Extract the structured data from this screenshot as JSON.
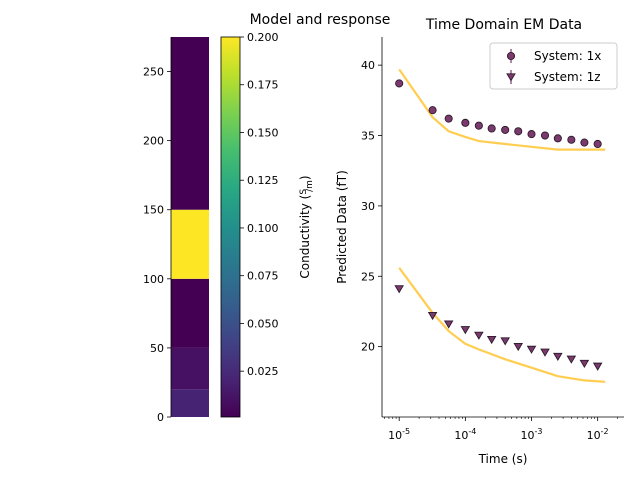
{
  "suptitle": "Model and response",
  "chart_data": [
    {
      "type": "heatmap",
      "ylim": [
        0,
        275
      ],
      "yticks": [
        "0",
        "50",
        "100",
        "150",
        "200",
        "250"
      ],
      "layers": [
        {
          "top": 20,
          "bottom": 0,
          "value": 0.02
        },
        {
          "top": 50,
          "bottom": 20,
          "value": 0.01
        },
        {
          "top": 100,
          "bottom": 50,
          "value": 0.001
        },
        {
          "top": 150,
          "bottom": 100,
          "value": 0.2
        },
        {
          "top": 275,
          "bottom": 150,
          "value": 0.001
        }
      ],
      "colormap": "viridis",
      "colorbar": {
        "label": "Conductivity (S/m)",
        "range": [
          0.001,
          0.2
        ],
        "ticks": [
          "0.025",
          "0.050",
          "0.075",
          "0.100",
          "0.125",
          "0.150",
          "0.175",
          "0.200"
        ]
      }
    },
    {
      "type": "scatter",
      "title": "Time Domain EM Data",
      "xlabel": "Time (s)",
      "ylabel": "Predicted Data (fT)",
      "xscale": "log",
      "xlim": [
        5.5e-06,
        0.025
      ],
      "ylim": [
        15,
        42
      ],
      "yticks": [
        "20",
        "25",
        "30",
        "35",
        "40"
      ],
      "xticks": [
        "10^-5",
        "10^-4",
        "10^-3",
        "10^-2"
      ],
      "legend_position": "top-right",
      "series": [
        {
          "name": "System: 1x",
          "marker": "circle",
          "color": "#7b3a6e",
          "x": [
            1e-05,
            3.2e-05,
            5.6e-05,
            0.0001,
            0.00016,
            0.00025,
            0.0004,
            0.00063,
            0.001,
            0.0016,
            0.0025,
            0.004,
            0.0063,
            0.01
          ],
          "y": [
            38.7,
            36.8,
            36.2,
            35.9,
            35.7,
            35.5,
            35.4,
            35.3,
            35.1,
            35.0,
            34.8,
            34.7,
            34.5,
            34.4
          ]
        },
        {
          "name": "System: 1z",
          "marker": "triangle-down",
          "color": "#7b3a6e",
          "x": [
            1e-05,
            3.2e-05,
            5.6e-05,
            0.0001,
            0.00016,
            0.00025,
            0.0004,
            0.00063,
            0.001,
            0.0016,
            0.0025,
            0.004,
            0.0063,
            0.01
          ],
          "y": [
            24.1,
            22.2,
            21.6,
            21.2,
            20.8,
            20.5,
            20.4,
            20.0,
            19.8,
            19.6,
            19.3,
            19.1,
            18.8,
            18.6
          ]
        },
        {
          "marker": "line",
          "color": "#ffc83d",
          "x": [
            1e-05,
            3.2e-05,
            5.6e-05,
            0.0001,
            0.00016,
            0.0004,
            0.001,
            0.0025,
            0.0063,
            0.013
          ],
          "y": [
            39.7,
            36.3,
            35.3,
            34.9,
            34.6,
            34.4,
            34.2,
            34.0,
            34.0,
            34.0
          ]
        },
        {
          "marker": "line",
          "color": "#ffc83d",
          "x": [
            1e-05,
            3.2e-05,
            5.6e-05,
            0.0001,
            0.00016,
            0.0004,
            0.001,
            0.0025,
            0.0063,
            0.013
          ],
          "y": [
            25.6,
            22.4,
            21.1,
            20.2,
            19.8,
            19.1,
            18.5,
            17.9,
            17.6,
            17.5
          ]
        }
      ]
    }
  ]
}
